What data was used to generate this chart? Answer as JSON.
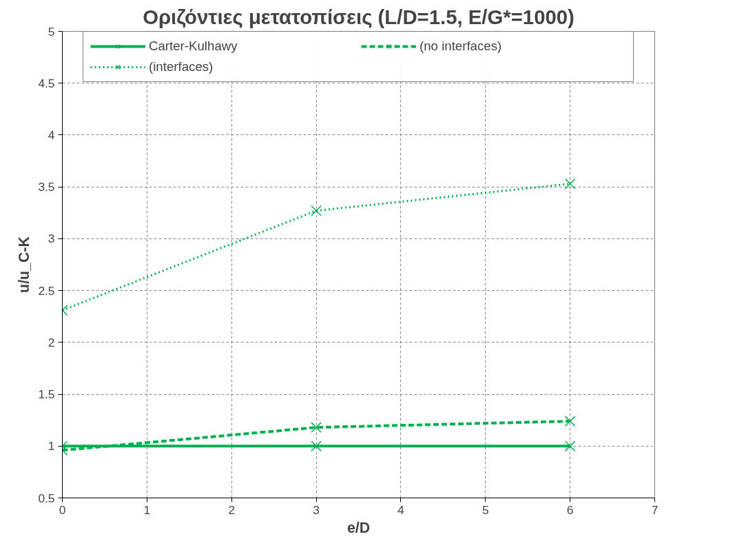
{
  "chart_data": {
    "type": "line",
    "title": "Οριζόντιες μετατοπίσεις (L/D=1.5, E/G*=1000)",
    "xlabel": "e/D",
    "ylabel": "u/u_C-K",
    "x": [
      0,
      3,
      6
    ],
    "series": [
      {
        "name": "Carter-Kulhawy",
        "color": "#00b050",
        "values": [
          1,
          1,
          1
        ],
        "line_style": "solid",
        "marker": "cross"
      },
      {
        "name": "(no interfaces)",
        "color": "#00b050",
        "values": [
          0.96,
          1.18,
          1.24
        ],
        "line_style": "dashed",
        "marker": "cross"
      },
      {
        "name": "(interfaces)",
        "color": "#00b050",
        "values": [
          2.31,
          3.27,
          3.53
        ],
        "line_style": "dotted",
        "marker": "cross"
      }
    ],
    "xlim": [
      0,
      7
    ],
    "xticks": [
      0,
      1,
      2,
      3,
      4,
      5,
      6,
      7
    ],
    "ylim": [
      0.5,
      5
    ],
    "yticks": [
      0.5,
      1,
      1.5,
      2,
      2.5,
      3,
      3.5,
      4,
      4.5,
      5
    ],
    "grid": true,
    "legend": "top"
  }
}
